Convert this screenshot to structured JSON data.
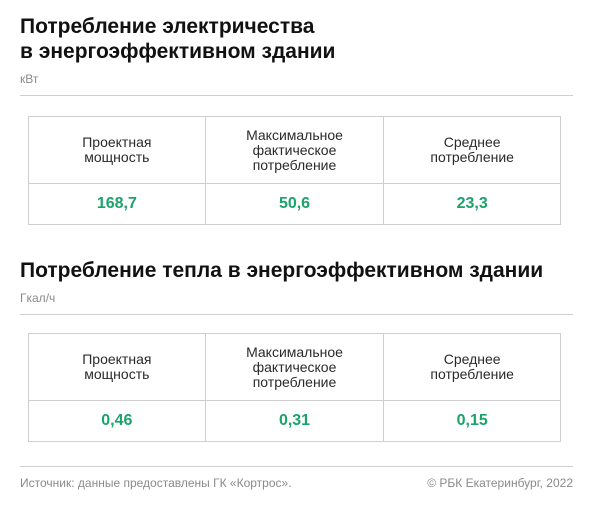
{
  "electricity": {
    "title": "Потребление электричества\nв энергоэффективном здании",
    "unit": "кВт",
    "headers": [
      "Проектная\nмощность",
      "Максимальное\nфактическое\nпотребление",
      "Среднее\nпотребление"
    ],
    "values": [
      "168,7",
      "50,6",
      "23,3"
    ]
  },
  "heat": {
    "title": "Потребление тепла в энергоэффективном здании",
    "unit": "Гкал/ч",
    "headers": [
      "Проектная\nмощность",
      "Максимальное\nфактическое\nпотребление",
      "Среднее\nпотребление"
    ],
    "values": [
      "0,46",
      "0,31",
      "0,15"
    ]
  },
  "footer": {
    "source": "Источник: данные предоставлены ГК «Кортрос».",
    "credit": "© РБК Екатеринбург, 2022"
  },
  "colors": {
    "value_green": "#1aa36a",
    "text": "#111111",
    "muted": "#8a8a8a",
    "rule": "#cfcfcf"
  }
}
